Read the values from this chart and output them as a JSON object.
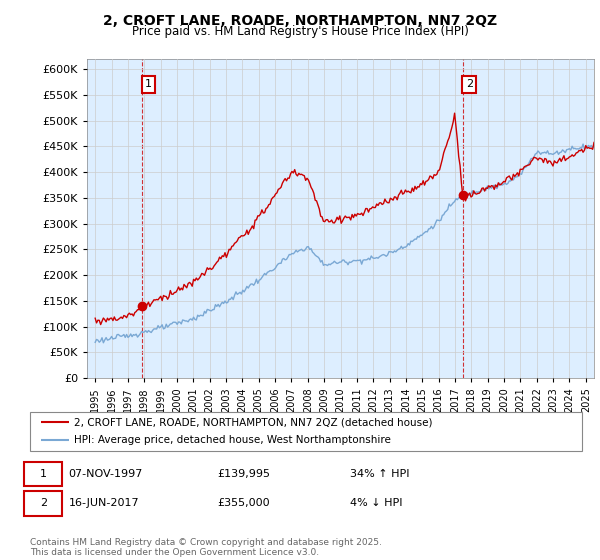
{
  "title": "2, CROFT LANE, ROADE, NORTHAMPTON, NN7 2QZ",
  "subtitle": "Price paid vs. HM Land Registry's House Price Index (HPI)",
  "legend_line1": "2, CROFT LANE, ROADE, NORTHAMPTON, NN7 2QZ (detached house)",
  "legend_line2": "HPI: Average price, detached house, West Northamptonshire",
  "sale1_date": "07-NOV-1997",
  "sale1_price": "£139,995",
  "sale1_hpi": "34% ↑ HPI",
  "sale2_date": "16-JUN-2017",
  "sale2_price": "£355,000",
  "sale2_hpi": "4% ↓ HPI",
  "copyright": "Contains HM Land Registry data © Crown copyright and database right 2025.\nThis data is licensed under the Open Government Licence v3.0.",
  "price_color": "#cc0000",
  "hpi_color": "#7aa8d4",
  "bg_color": "#ddeeff",
  "sale1_x": 1997.85,
  "sale1_y": 139995,
  "sale2_x": 2017.46,
  "sale2_y": 355000,
  "ylim": [
    0,
    620000
  ],
  "yticks": [
    0,
    50000,
    100000,
    150000,
    200000,
    250000,
    300000,
    350000,
    400000,
    450000,
    500000,
    550000,
    600000
  ],
  "xlim": [
    1994.5,
    2025.5
  ],
  "xticks": [
    1995,
    1996,
    1997,
    1998,
    1999,
    2000,
    2001,
    2002,
    2003,
    2004,
    2005,
    2006,
    2007,
    2008,
    2009,
    2010,
    2011,
    2012,
    2013,
    2014,
    2015,
    2016,
    2017,
    2018,
    2019,
    2020,
    2021,
    2022,
    2023,
    2024,
    2025
  ],
  "hpi_waypoints_x": [
    1995,
    1997,
    1999,
    2001,
    2003,
    2005,
    2007,
    2008,
    2009,
    2010,
    2011,
    2012,
    2013,
    2014,
    2015,
    2016,
    2017,
    2018,
    2019,
    2020,
    2021,
    2022,
    2023,
    2024,
    2025
  ],
  "hpi_waypoints_y": [
    72000,
    82000,
    97000,
    115000,
    148000,
    190000,
    240000,
    255000,
    220000,
    225000,
    228000,
    232000,
    242000,
    258000,
    278000,
    305000,
    345000,
    360000,
    370000,
    375000,
    395000,
    440000,
    435000,
    445000,
    450000
  ],
  "price_waypoints_x": [
    1995,
    1997,
    1998,
    1999,
    2001,
    2003,
    2005,
    2007,
    2008,
    2009,
    2010,
    2011,
    2012,
    2013,
    2014,
    2015,
    2016,
    2017,
    2017.5,
    2018,
    2019,
    2020,
    2021,
    2022,
    2023,
    2024,
    2025
  ],
  "price_waypoints_y": [
    110000,
    120000,
    140000,
    155000,
    185000,
    240000,
    310000,
    400000,
    390000,
    300000,
    310000,
    315000,
    330000,
    345000,
    360000,
    375000,
    400000,
    510000,
    350000,
    355000,
    370000,
    380000,
    400000,
    430000,
    415000,
    430000,
    445000
  ]
}
